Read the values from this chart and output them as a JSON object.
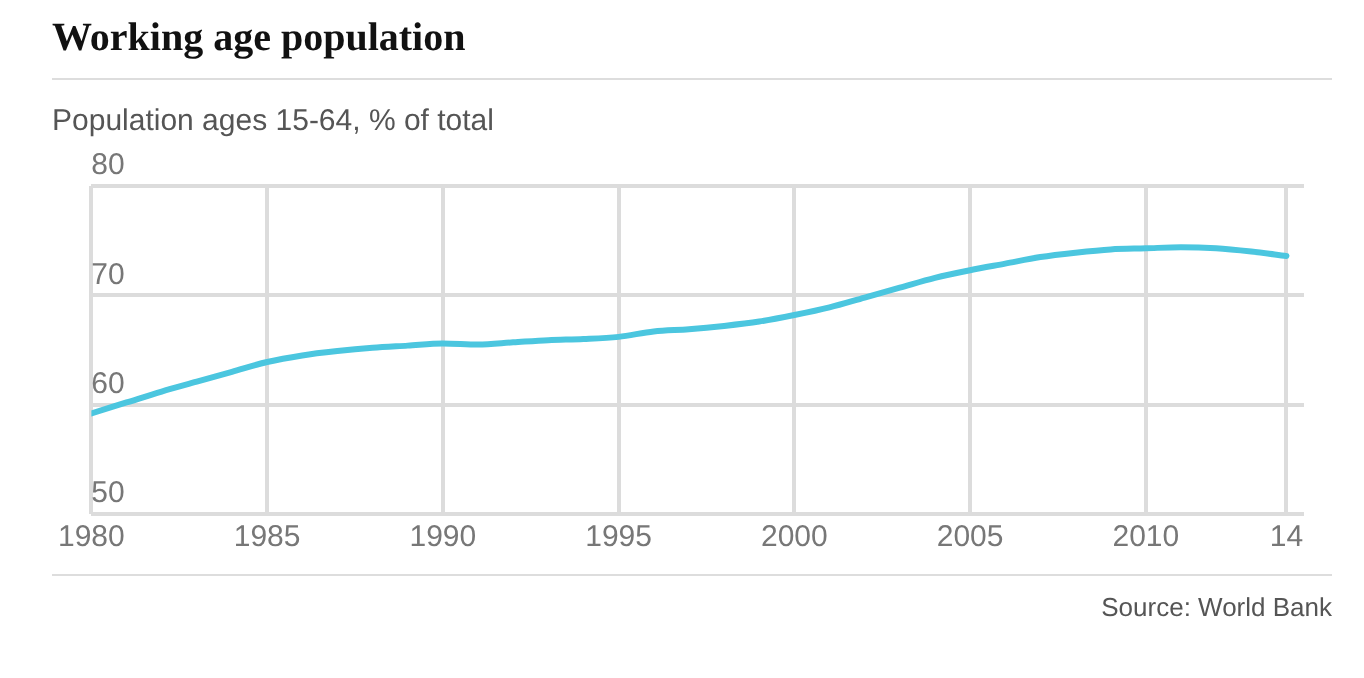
{
  "chart_data": {
    "type": "line",
    "title": "Working age population",
    "subtitle": "Population ages 15-64, % of total",
    "annotations": [
      "Source: World Bank"
    ],
    "x": [
      1980,
      1981,
      1982,
      1983,
      1984,
      1985,
      1986,
      1987,
      1988,
      1989,
      1990,
      1991,
      1992,
      1993,
      1994,
      1995,
      1996,
      1997,
      1998,
      1999,
      2000,
      2001,
      2002,
      2003,
      2004,
      2005,
      2006,
      2007,
      2008,
      2009,
      2010,
      2011,
      2012,
      2013,
      2014
    ],
    "series": [
      {
        "color": "#4bc6df",
        "values": [
          59.2,
          60.2,
          61.2,
          62.1,
          63.0,
          63.9,
          64.5,
          64.9,
          65.2,
          65.4,
          65.6,
          65.5,
          65.7,
          65.9,
          66.0,
          66.2,
          66.7,
          66.9,
          67.2,
          67.6,
          68.2,
          68.9,
          69.8,
          70.7,
          71.6,
          72.3,
          72.9,
          73.5,
          73.9,
          74.2,
          74.3,
          74.4,
          74.3,
          74.0,
          73.6
        ]
      }
    ],
    "xlim": [
      1980,
      2014.5
    ],
    "xticks": [
      1980,
      1985,
      1990,
      1995,
      2000,
      2005,
      2010,
      {
        "value": 2014,
        "label": "14"
      }
    ],
    "ylim": [
      50,
      80
    ],
    "yticks": [
      50,
      60,
      70,
      80
    ],
    "grid": true,
    "legend": false,
    "marker": "none",
    "line_style": "solid"
  }
}
